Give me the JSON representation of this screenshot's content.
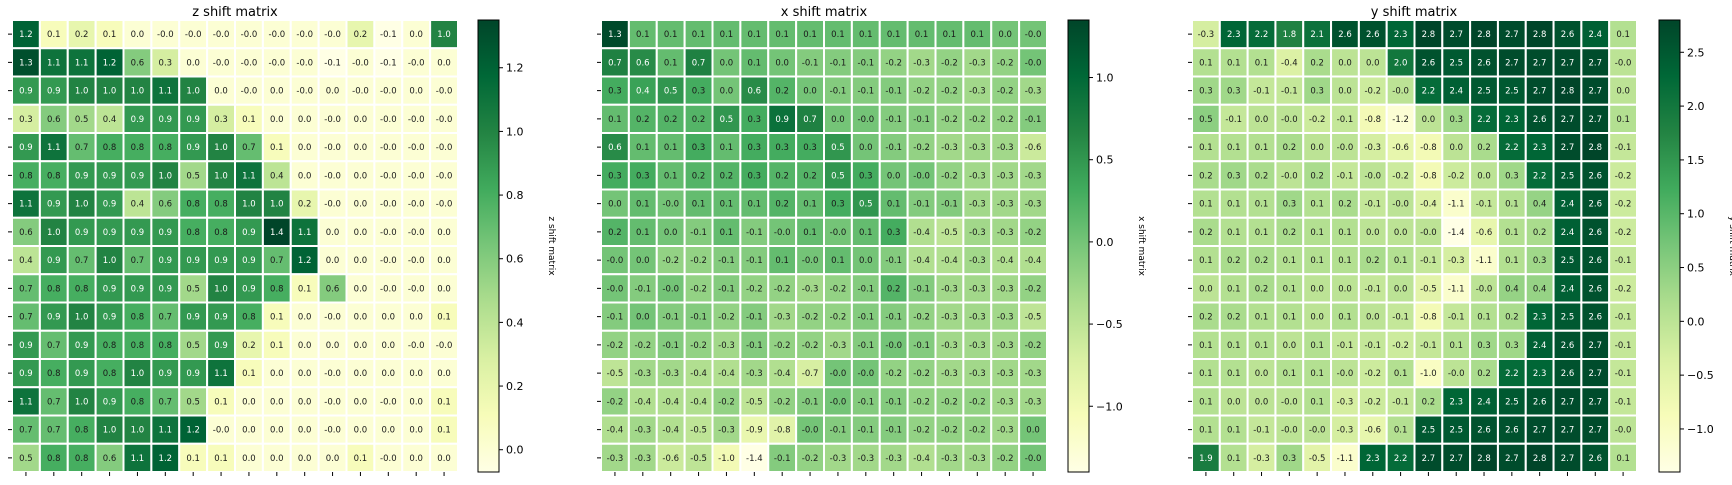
{
  "chart_data": [
    {
      "type": "heatmap",
      "title": "z shift matrix",
      "colorbar_label": "z shift matrix",
      "colorbar_ticks": [
        0.0,
        0.2,
        0.4,
        0.6,
        0.8,
        1.0,
        1.2
      ],
      "colorbar_tick_labels": [
        "0.0",
        "0.2",
        "0.4",
        "0.6",
        "0.8",
        "1.0",
        "1.2"
      ],
      "vmin": -0.07,
      "vmax": 1.35,
      "colormap": [
        "#ffffe5",
        "#f7fcb9",
        "#d9f0a3",
        "#addd8e",
        "#78c679",
        "#41ab5d",
        "#238443",
        "#006837",
        "#004529"
      ],
      "values": [
        [
          "1.2",
          "0.1",
          "0.2",
          "0.1",
          "0.0",
          "-0.0",
          "-0.0",
          "-0.0",
          "-0.0",
          "-0.0",
          "-0.0",
          "-0.0",
          "0.2",
          "-0.1",
          "0.0",
          "1.0"
        ],
        [
          "1.3",
          "1.1",
          "1.1",
          "1.2",
          "0.6",
          "0.3",
          "0.0",
          "-0.0",
          "-0.0",
          "-0.0",
          "-0.0",
          "-0.1",
          "-0.0",
          "-0.1",
          "-0.0",
          "0.0"
        ],
        [
          "0.9",
          "0.9",
          "1.0",
          "1.0",
          "1.0",
          "1.1",
          "1.0",
          "0.0",
          "-0.0",
          "0.0",
          "-0.0",
          "0.0",
          "-0.0",
          "-0.0",
          "0.0",
          "-0.0"
        ],
        [
          "0.3",
          "0.6",
          "0.5",
          "0.4",
          "0.9",
          "0.9",
          "0.9",
          "0.3",
          "0.1",
          "0.0",
          "0.0",
          "-0.0",
          "0.0",
          "-0.0",
          "-0.0",
          "-0.0"
        ],
        [
          "0.9",
          "1.1",
          "0.7",
          "0.8",
          "0.8",
          "0.8",
          "0.9",
          "1.0",
          "0.7",
          "0.1",
          "0.0",
          "-0.0",
          "0.0",
          "-0.0",
          "-0.0",
          "-0.0"
        ],
        [
          "0.8",
          "0.8",
          "0.9",
          "0.9",
          "0.9",
          "1.0",
          "0.5",
          "1.0",
          "1.1",
          "0.4",
          "0.0",
          "-0.0",
          "0.0",
          "-0.0",
          "-0.0",
          "-0.0"
        ],
        [
          "1.1",
          "0.9",
          "1.0",
          "0.9",
          "0.4",
          "0.6",
          "0.8",
          "0.8",
          "1.0",
          "1.0",
          "0.2",
          "-0.0",
          "0.0",
          "-0.0",
          "-0.0",
          "-0.0"
        ],
        [
          "0.6",
          "1.0",
          "0.9",
          "0.9",
          "0.9",
          "0.9",
          "0.8",
          "0.8",
          "0.9",
          "1.4",
          "1.1",
          "0.0",
          "0.0",
          "-0.0",
          "-0.0",
          "0.0"
        ],
        [
          "0.4",
          "0.9",
          "0.7",
          "1.0",
          "0.7",
          "0.9",
          "0.9",
          "0.9",
          "0.9",
          "0.7",
          "1.2",
          "0.0",
          "0.0",
          "-0.0",
          "-0.0",
          "0.0"
        ],
        [
          "0.7",
          "0.8",
          "0.8",
          "0.9",
          "0.9",
          "0.9",
          "0.5",
          "1.0",
          "0.9",
          "0.8",
          "0.1",
          "0.6",
          "0.0",
          "-0.0",
          "-0.0",
          "0.0"
        ],
        [
          "0.7",
          "0.9",
          "1.0",
          "0.9",
          "0.8",
          "0.7",
          "0.9",
          "0.9",
          "0.8",
          "0.1",
          "0.0",
          "-0.0",
          "0.0",
          "0.0",
          "0.0",
          "0.1"
        ],
        [
          "0.9",
          "0.7",
          "0.9",
          "0.8",
          "0.8",
          "0.8",
          "0.5",
          "0.9",
          "0.2",
          "0.1",
          "0.0",
          "0.0",
          "0.0",
          "0.0",
          "-0.0",
          "-0.0"
        ],
        [
          "0.9",
          "0.8",
          "0.9",
          "0.8",
          "1.0",
          "0.9",
          "0.9",
          "1.1",
          "0.1",
          "0.0",
          "0.0",
          "-0.0",
          "0.0",
          "0.0",
          "0.0",
          "0.0"
        ],
        [
          "1.1",
          "0.7",
          "1.0",
          "0.9",
          "0.8",
          "0.7",
          "0.5",
          "0.1",
          "0.0",
          "0.0",
          "0.0",
          "-0.0",
          "0.0",
          "-0.0",
          "0.0",
          "0.1"
        ],
        [
          "0.7",
          "0.7",
          "0.8",
          "1.0",
          "1.0",
          "1.1",
          "1.2",
          "-0.0",
          "0.0",
          "0.0",
          "0.0",
          "-0.0",
          "0.0",
          "0.0",
          "0.0",
          "0.1"
        ],
        [
          "0.5",
          "0.8",
          "0.8",
          "0.6",
          "1.1",
          "1.2",
          "0.1",
          "0.1",
          "0.0",
          "0.0",
          "0.0",
          "0.0",
          "0.1",
          "-0.0",
          "0.0",
          "0.0"
        ]
      ]
    },
    {
      "type": "heatmap",
      "title": "x shift matrix",
      "colorbar_label": "x shift matrix",
      "colorbar_ticks": [
        -1.0,
        -0.5,
        0.0,
        0.5,
        1.0
      ],
      "colorbar_tick_labels": [
        "−1.0",
        "−0.5",
        "0.0",
        "0.5",
        "1.0"
      ],
      "vmin": -1.4,
      "vmax": 1.35,
      "colormap": [
        "#ffffe5",
        "#f7fcb9",
        "#d9f0a3",
        "#addd8e",
        "#78c679",
        "#41ab5d",
        "#238443",
        "#006837",
        "#004529"
      ],
      "values": [
        [
          "1.3",
          "0.1",
          "0.1",
          "0.1",
          "0.1",
          "0.1",
          "0.1",
          "0.1",
          "0.1",
          "0.1",
          "0.1",
          "0.1",
          "0.1",
          "0.1",
          "0.0",
          "-0.0"
        ],
        [
          "0.7",
          "0.6",
          "0.1",
          "0.7",
          "0.0",
          "0.1",
          "0.0",
          "-0.1",
          "-0.1",
          "-0.1",
          "-0.2",
          "-0.3",
          "-0.2",
          "-0.3",
          "-0.2",
          "-0.0"
        ],
        [
          "0.3",
          "0.4",
          "0.5",
          "0.3",
          "0.0",
          "0.6",
          "0.2",
          "0.0",
          "-0.1",
          "-0.1",
          "-0.1",
          "-0.2",
          "-0.2",
          "-0.3",
          "-0.2",
          "-0.3"
        ],
        [
          "0.1",
          "0.2",
          "0.2",
          "0.2",
          "0.5",
          "0.3",
          "0.9",
          "0.7",
          "0.0",
          "-0.0",
          "-0.1",
          "-0.1",
          "-0.2",
          "-0.2",
          "-0.2",
          "-0.1"
        ],
        [
          "0.6",
          "0.1",
          "0.1",
          "0.3",
          "0.1",
          "0.3",
          "0.3",
          "0.3",
          "0.5",
          "0.0",
          "-0.1",
          "-0.2",
          "-0.3",
          "-0.3",
          "-0.3",
          "-0.6"
        ],
        [
          "0.3",
          "0.3",
          "0.1",
          "0.2",
          "0.2",
          "0.3",
          "0.2",
          "0.2",
          "0.5",
          "0.3",
          "0.0",
          "-0.0",
          "-0.2",
          "-0.3",
          "-0.3",
          "-0.3"
        ],
        [
          "0.0",
          "0.1",
          "-0.0",
          "0.1",
          "0.1",
          "0.1",
          "0.2",
          "0.1",
          "0.3",
          "0.5",
          "0.1",
          "-0.1",
          "-0.1",
          "-0.3",
          "-0.3",
          "-0.3"
        ],
        [
          "0.2",
          "0.1",
          "0.0",
          "-0.1",
          "0.1",
          "-0.1",
          "-0.0",
          "0.1",
          "-0.0",
          "0.1",
          "0.3",
          "-0.4",
          "-0.5",
          "-0.3",
          "-0.3",
          "-0.2"
        ],
        [
          "-0.0",
          "0.0",
          "-0.2",
          "-0.2",
          "-0.1",
          "-0.1",
          "0.1",
          "-0.0",
          "0.1",
          "0.0",
          "-0.1",
          "-0.4",
          "-0.4",
          "-0.3",
          "-0.4",
          "-0.4"
        ],
        [
          "-0.0",
          "-0.1",
          "-0.0",
          "-0.2",
          "-0.1",
          "-0.2",
          "-0.2",
          "-0.3",
          "-0.2",
          "-0.1",
          "0.2",
          "-0.1",
          "-0.3",
          "-0.3",
          "-0.3",
          "-0.2"
        ],
        [
          "-0.1",
          "0.0",
          "-0.1",
          "-0.1",
          "-0.2",
          "-0.1",
          "-0.3",
          "-0.2",
          "-0.2",
          "-0.1",
          "-0.1",
          "-0.2",
          "-0.3",
          "-0.3",
          "-0.3",
          "-0.5"
        ],
        [
          "-0.2",
          "-0.2",
          "-0.1",
          "-0.2",
          "-0.3",
          "-0.1",
          "-0.2",
          "-0.2",
          "-0.3",
          "-0.1",
          "-0.0",
          "-0.1",
          "-0.3",
          "-0.3",
          "-0.3",
          "-0.2"
        ],
        [
          "-0.5",
          "-0.3",
          "-0.3",
          "-0.4",
          "-0.4",
          "-0.3",
          "-0.4",
          "-0.7",
          "-0.0",
          "-0.0",
          "-0.2",
          "-0.2",
          "-0.3",
          "-0.3",
          "-0.3",
          "-0.3"
        ],
        [
          "-0.2",
          "-0.4",
          "-0.4",
          "-0.4",
          "-0.2",
          "-0.5",
          "-0.2",
          "-0.1",
          "-0.0",
          "-0.1",
          "-0.1",
          "-0.2",
          "-0.2",
          "-0.2",
          "-0.3",
          "-0.3"
        ],
        [
          "-0.4",
          "-0.3",
          "-0.4",
          "-0.5",
          "-0.3",
          "-0.9",
          "-0.8",
          "-0.0",
          "-0.1",
          "-0.1",
          "-0.1",
          "-0.2",
          "-0.2",
          "-0.2",
          "-0.3",
          "0.0"
        ],
        [
          "-0.3",
          "-0.3",
          "-0.6",
          "-0.5",
          "-1.0",
          "-1.4",
          "-0.1",
          "-0.2",
          "-0.3",
          "-0.3",
          "-0.3",
          "-0.4",
          "-0.3",
          "-0.3",
          "-0.2",
          "-0.0"
        ]
      ]
    },
    {
      "type": "heatmap",
      "title": "y shift matrix",
      "colorbar_label": "y shift matrix",
      "colorbar_ticks": [
        -1.0,
        -0.5,
        0.0,
        0.5,
        1.0,
        1.5,
        2.0,
        2.5
      ],
      "colorbar_tick_labels": [
        "−1.0",
        "−0.5",
        "0.0",
        "0.5",
        "1.0",
        "1.5",
        "2.0",
        "2.5"
      ],
      "vmin": -1.4,
      "vmax": 2.8,
      "colormap": [
        "#ffffe5",
        "#f7fcb9",
        "#d9f0a3",
        "#addd8e",
        "#78c679",
        "#41ab5d",
        "#238443",
        "#006837",
        "#004529"
      ],
      "values": [
        [
          "-0.3",
          "2.3",
          "2.2",
          "1.8",
          "2.1",
          "2.6",
          "2.6",
          "2.3",
          "2.8",
          "2.7",
          "2.8",
          "2.7",
          "2.8",
          "2.6",
          "2.4",
          "0.1"
        ],
        [
          "0.1",
          "0.1",
          "0.1",
          "-0.4",
          "0.2",
          "0.0",
          "0.0",
          "2.0",
          "2.6",
          "2.5",
          "2.6",
          "2.7",
          "2.7",
          "2.7",
          "2.7",
          "-0.0"
        ],
        [
          "0.3",
          "0.3",
          "-0.1",
          "-0.1",
          "0.3",
          "0.0",
          "-0.2",
          "-0.0",
          "2.2",
          "2.4",
          "2.5",
          "2.5",
          "2.7",
          "2.8",
          "2.7",
          "0.0"
        ],
        [
          "0.5",
          "-0.1",
          "0.0",
          "-0.0",
          "-0.2",
          "-0.1",
          "-0.8",
          "-1.2",
          "0.0",
          "0.3",
          "2.2",
          "2.3",
          "2.6",
          "2.7",
          "2.7",
          "0.1"
        ],
        [
          "0.1",
          "0.1",
          "0.1",
          "0.2",
          "0.0",
          "-0.0",
          "-0.3",
          "-0.6",
          "-0.8",
          "0.0",
          "0.2",
          "2.2",
          "2.3",
          "2.7",
          "2.8",
          "-0.1"
        ],
        [
          "0.2",
          "0.3",
          "0.2",
          "-0.0",
          "0.2",
          "-0.1",
          "-0.0",
          "-0.2",
          "-0.8",
          "-0.2",
          "0.0",
          "0.3",
          "2.2",
          "2.5",
          "2.6",
          "-0.2"
        ],
        [
          "0.1",
          "0.1",
          "0.1",
          "0.3",
          "0.1",
          "0.2",
          "-0.1",
          "-0.0",
          "-0.4",
          "-1.1",
          "-0.1",
          "0.1",
          "0.4",
          "2.4",
          "2.6",
          "-0.2"
        ],
        [
          "0.2",
          "0.1",
          "0.1",
          "0.2",
          "0.1",
          "0.1",
          "0.0",
          "0.0",
          "-0.0",
          "-1.4",
          "-0.6",
          "0.1",
          "0.2",
          "2.4",
          "2.6",
          "-0.2"
        ],
        [
          "0.1",
          "0.2",
          "0.2",
          "0.1",
          "0.1",
          "0.1",
          "0.2",
          "0.1",
          "-0.1",
          "-0.3",
          "-1.1",
          "0.1",
          "0.3",
          "2.5",
          "2.6",
          "-0.1"
        ],
        [
          "0.0",
          "0.1",
          "0.2",
          "0.1",
          "0.0",
          "0.0",
          "-0.1",
          "0.0",
          "-0.5",
          "-1.1",
          "-0.0",
          "0.4",
          "0.4",
          "2.4",
          "2.6",
          "-0.2"
        ],
        [
          "0.2",
          "0.2",
          "0.1",
          "0.1",
          "0.0",
          "0.1",
          "0.0",
          "-0.1",
          "-0.8",
          "-0.1",
          "0.1",
          "0.2",
          "2.3",
          "2.5",
          "2.6",
          "-0.1"
        ],
        [
          "0.1",
          "0.1",
          "0.1",
          "0.0",
          "0.1",
          "-0.1",
          "-0.1",
          "-0.2",
          "-0.1",
          "0.1",
          "0.3",
          "0.3",
          "2.4",
          "2.6",
          "2.7",
          "-0.1"
        ],
        [
          "0.1",
          "0.1",
          "0.0",
          "0.1",
          "0.1",
          "-0.0",
          "-0.2",
          "0.1",
          "-1.0",
          "-0.0",
          "0.2",
          "2.2",
          "2.3",
          "2.6",
          "2.7",
          "-0.1"
        ],
        [
          "0.1",
          "0.0",
          "0.0",
          "-0.0",
          "0.1",
          "-0.3",
          "-0.2",
          "-0.1",
          "0.2",
          "2.3",
          "2.4",
          "2.5",
          "2.6",
          "2.7",
          "2.7",
          "-0.1"
        ],
        [
          "0.1",
          "0.1",
          "-0.1",
          "-0.0",
          "-0.0",
          "-0.3",
          "-0.6",
          "0.1",
          "2.5",
          "2.5",
          "2.6",
          "2.6",
          "2.7",
          "2.7",
          "2.7",
          "-0.0"
        ],
        [
          "1.9",
          "0.1",
          "-0.3",
          "0.3",
          "-0.5",
          "-1.1",
          "2.3",
          "2.2",
          "2.7",
          "2.7",
          "2.8",
          "2.7",
          "2.8",
          "2.7",
          "2.6",
          "0.1"
        ]
      ]
    }
  ]
}
